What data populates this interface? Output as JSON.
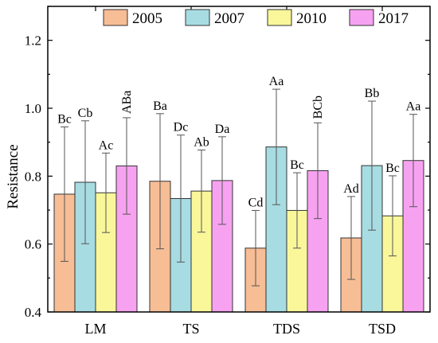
{
  "chart_data": {
    "type": "bar",
    "ylabel": "Resistance",
    "xlabel": "",
    "ylim": [
      0.4,
      1.3
    ],
    "yticks": [
      0.4,
      0.6,
      0.8,
      1.0,
      1.2
    ],
    "ytick_labels": [
      "0.4",
      "0.6",
      "0.8",
      "1.0",
      "1.2"
    ],
    "legend_position": "top",
    "categories": [
      "LM",
      "TS",
      "TDS",
      "TSD"
    ],
    "series": [
      {
        "name": "2005",
        "color": "#F7BD95",
        "values": [
          0.747,
          0.785,
          0.588,
          0.618
        ],
        "errors": [
          0.198,
          0.199,
          0.111,
          0.122
        ],
        "labels": [
          "Bc",
          "Ba",
          "Cd",
          "Ad"
        ]
      },
      {
        "name": "2007",
        "color": "#A7DCE2",
        "values": [
          0.782,
          0.734,
          0.886,
          0.831
        ],
        "errors": [
          0.181,
          0.187,
          0.17,
          0.19
        ],
        "labels": [
          "Cb",
          "Dc",
          "Aa",
          "Bb"
        ]
      },
      {
        "name": "2010",
        "color": "#F9F79A",
        "values": [
          0.751,
          0.756,
          0.699,
          0.683
        ],
        "errors": [
          0.117,
          0.121,
          0.111,
          0.118
        ],
        "labels": [
          "Ac",
          "Ab",
          "Bc",
          "Bc"
        ]
      },
      {
        "name": "2017",
        "color": "#F7A2F1",
        "values": [
          0.83,
          0.787,
          0.816,
          0.846
        ],
        "errors": [
          0.142,
          0.129,
          0.141,
          0.136
        ],
        "labels": [
          "ABa",
          "Da",
          "BCb",
          "Aa"
        ]
      }
    ]
  }
}
